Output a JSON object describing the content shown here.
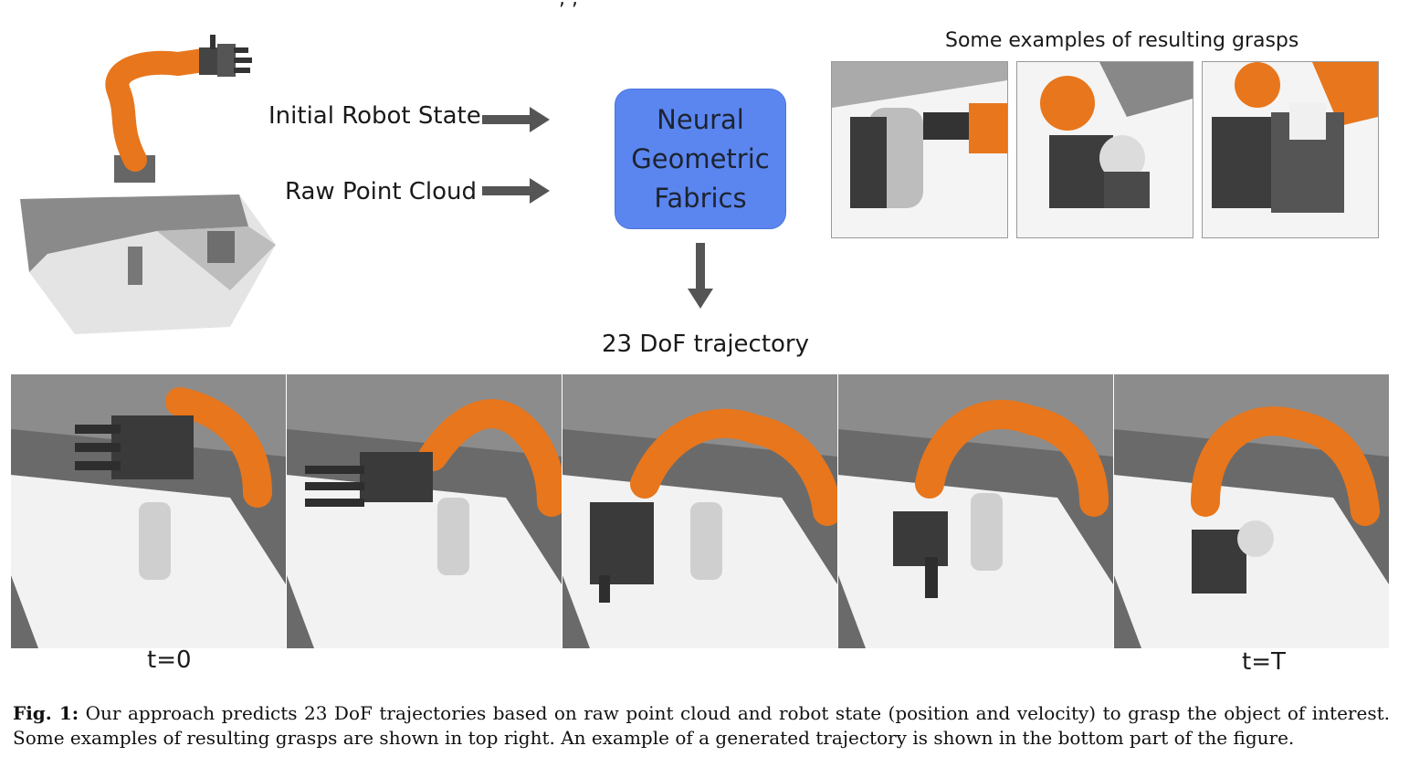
{
  "top_clip_text": ", ,",
  "inputs": {
    "initial_robot_state": "Initial Robot State",
    "raw_point_cloud": "Raw Point Cloud"
  },
  "fabric_box": {
    "line1": "Neural",
    "line2": "Geometric",
    "line3": "Fabrics",
    "color": "#5b86f0"
  },
  "output_label": "23 DoF trajectory",
  "grasps": {
    "title": "Some examples of resulting grasps"
  },
  "trajectory": {
    "start_label": "t=0",
    "end_label": "t=T"
  },
  "caption": {
    "prefix": "Fig. 1:",
    "text": " Our approach predicts 23 DoF trajectories based on raw point cloud and robot state (position and velocity) to grasp the object of interest. Some examples of resulting grasps are shown in top right. An example of a generated trajectory is shown in the bottom part of the figure."
  },
  "colors": {
    "robot_orange": "#e8761c",
    "hand_dark": "#3a3a3a",
    "arrow_gray": "#555555"
  }
}
